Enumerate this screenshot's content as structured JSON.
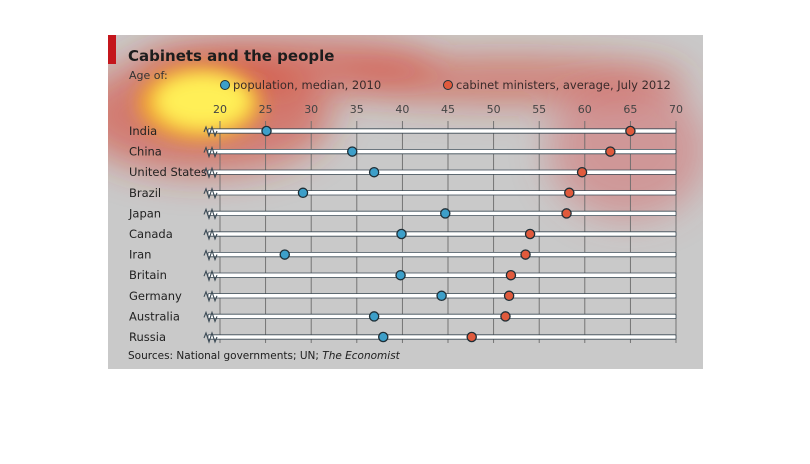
{
  "title": "Cabinets and the people",
  "subtitle": "Age of:",
  "source": {
    "prefix": "Sources: National governments; UN; ",
    "italic": "The Economist"
  },
  "colors": {
    "population": "#3d9fc9",
    "ministers": "#e05a3c",
    "accent": "#c4161c",
    "background": "#c9c9c9"
  },
  "chart_data": {
    "type": "dot",
    "xlim": [
      20,
      70
    ],
    "x_ticks": [
      20,
      25,
      30,
      35,
      40,
      45,
      50,
      55,
      60,
      65,
      70
    ],
    "axis_break": true,
    "grid": true,
    "legend_position": "top",
    "categories": [
      "India",
      "China",
      "United States",
      "Brazil",
      "Japan",
      "Canada",
      "Iran",
      "Britain",
      "Germany",
      "Australia",
      "Russia"
    ],
    "series": [
      {
        "name": "population, median, 2010",
        "values": [
          25.1,
          34.5,
          36.9,
          29.1,
          44.7,
          39.9,
          27.1,
          39.8,
          44.3,
          36.9,
          37.9
        ]
      },
      {
        "name": "cabinet ministers, average, July 2012",
        "values": [
          65.0,
          62.8,
          59.7,
          58.3,
          58.0,
          54.0,
          53.5,
          51.9,
          51.7,
          51.3,
          47.6
        ]
      }
    ]
  }
}
